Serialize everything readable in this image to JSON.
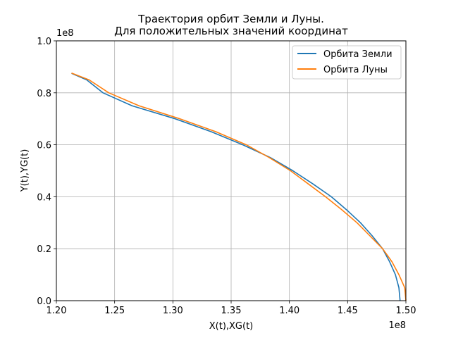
{
  "chart_data": {
    "type": "line",
    "title_line1": "Траектория орбит Земли и Луны.",
    "title_line2": "Для положительных значений координат",
    "xlabel": "X(t),XG(t)",
    "ylabel": "Y(t),YG(t)",
    "x_multiplier": "1e8",
    "y_multiplier": "1e8",
    "xlim": [
      1.2,
      1.5
    ],
    "ylim": [
      0.0,
      1.0
    ],
    "xticks": [
      "1.20",
      "1.25",
      "1.30",
      "1.35",
      "1.40",
      "1.45",
      "1.50"
    ],
    "yticks": [
      "0.0",
      "0.2",
      "0.4",
      "0.6",
      "0.8",
      "1.0"
    ],
    "grid": true,
    "legend_position": "top-right",
    "series": [
      {
        "name": "Орбита Земли",
        "color": "#1f77b4",
        "points": [
          [
            1.495,
            0.0
          ],
          [
            1.494,
            0.05
          ],
          [
            1.491,
            0.1
          ],
          [
            1.486,
            0.15
          ],
          [
            1.48,
            0.2
          ],
          [
            1.471,
            0.25
          ],
          [
            1.461,
            0.3
          ],
          [
            1.449,
            0.35
          ],
          [
            1.436,
            0.4
          ],
          [
            1.42,
            0.45
          ],
          [
            1.403,
            0.5
          ],
          [
            1.384,
            0.55
          ],
          [
            1.36,
            0.6
          ],
          [
            1.333,
            0.65
          ],
          [
            1.302,
            0.7
          ],
          [
            1.265,
            0.75
          ],
          [
            1.24,
            0.8
          ],
          [
            1.226,
            0.85
          ],
          [
            1.213,
            0.875
          ]
        ]
      },
      {
        "name": "Орбита Луны",
        "color": "#ff7f0e",
        "points": [
          [
            1.5,
            0.0
          ],
          [
            1.499,
            0.05
          ],
          [
            1.494,
            0.1
          ],
          [
            1.488,
            0.15
          ],
          [
            1.48,
            0.2
          ],
          [
            1.469,
            0.25
          ],
          [
            1.458,
            0.3
          ],
          [
            1.445,
            0.35
          ],
          [
            1.431,
            0.4
          ],
          [
            1.416,
            0.45
          ],
          [
            1.401,
            0.5
          ],
          [
            1.383,
            0.55
          ],
          [
            1.363,
            0.6
          ],
          [
            1.337,
            0.65
          ],
          [
            1.306,
            0.7
          ],
          [
            1.271,
            0.75
          ],
          [
            1.245,
            0.8
          ],
          [
            1.228,
            0.85
          ],
          [
            1.213,
            0.876
          ]
        ]
      }
    ]
  }
}
